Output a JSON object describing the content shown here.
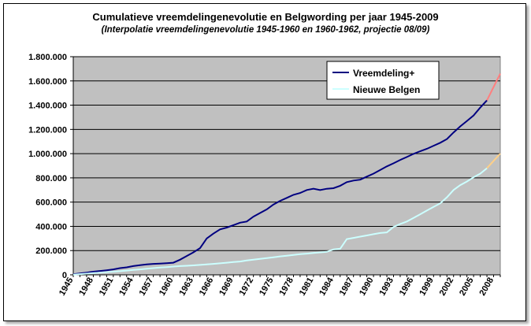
{
  "chart_data": {
    "type": "line",
    "title": "Cumulatieve vreemdelingenevolutie en Belgwording per jaar 1945-2009",
    "subtitle": "(Interpolatie vreemdelingenevolutie 1945-1960 en 1960-1962, projectie 08/09)",
    "xlabel": "",
    "ylabel": "",
    "xlim": [
      1945,
      2009
    ],
    "ylim": [
      0,
      1800000
    ],
    "grid": true,
    "legend_position": "top-right",
    "y_ticks": [
      0,
      200000,
      400000,
      600000,
      800000,
      1000000,
      1200000,
      1400000,
      1600000,
      1800000
    ],
    "y_tick_labels": [
      "0",
      "200.000",
      "400.000",
      "600.000",
      "800.000",
      "1.000.000",
      "1.200.000",
      "1.400.000",
      "1.600.000",
      "1.800.000"
    ],
    "x_tick_labels": [
      "1945",
      "1948",
      "1951",
      "1954",
      "1957",
      "1960",
      "1963",
      "1966",
      "1969",
      "1972",
      "1975",
      "1978",
      "1981",
      "1984",
      "1987",
      "1990",
      "1993",
      "1996",
      "1999",
      "2002",
      "2005",
      "2008"
    ],
    "series": [
      {
        "name": "Vreemdeling+",
        "color": "#000080",
        "projection_color": "#ff7f7f",
        "projection_from": 2007,
        "x": [
          1945,
          1946,
          1947,
          1948,
          1949,
          1950,
          1951,
          1952,
          1953,
          1954,
          1955,
          1956,
          1957,
          1958,
          1959,
          1960,
          1961,
          1962,
          1963,
          1964,
          1965,
          1966,
          1967,
          1968,
          1969,
          1970,
          1971,
          1972,
          1973,
          1974,
          1975,
          1976,
          1977,
          1978,
          1979,
          1980,
          1981,
          1982,
          1983,
          1984,
          1985,
          1986,
          1987,
          1988,
          1989,
          1990,
          1991,
          1992,
          1993,
          1994,
          1995,
          1996,
          1997,
          1998,
          1999,
          2000,
          2001,
          2002,
          2003,
          2004,
          2005,
          2006,
          2007,
          2008,
          2009
        ],
        "values": [
          5000,
          12000,
          18000,
          26000,
          32000,
          38000,
          45000,
          55000,
          62000,
          72000,
          80000,
          86000,
          90000,
          93000,
          96000,
          100000,
          125000,
          155000,
          185000,
          220000,
          300000,
          340000,
          375000,
          390000,
          410000,
          430000,
          440000,
          480000,
          510000,
          540000,
          580000,
          610000,
          635000,
          660000,
          675000,
          700000,
          710000,
          700000,
          710000,
          715000,
          735000,
          765000,
          778000,
          785000,
          810000,
          835000,
          865000,
          895000,
          920000,
          948000,
          972000,
          998000,
          1020000,
          1040000,
          1065000,
          1090000,
          1120000,
          1175000,
          1225000,
          1270000,
          1315000,
          1380000,
          1440000,
          1550000,
          1660000
        ]
      },
      {
        "name": "Nieuwe Belgen",
        "color": "#ccffff",
        "projection_color": "#ffd088",
        "projection_from": 2007,
        "x": [
          1945,
          1946,
          1947,
          1948,
          1949,
          1950,
          1951,
          1952,
          1953,
          1954,
          1955,
          1956,
          1957,
          1958,
          1959,
          1960,
          1961,
          1962,
          1963,
          1964,
          1965,
          1966,
          1967,
          1968,
          1969,
          1970,
          1971,
          1972,
          1973,
          1974,
          1975,
          1976,
          1977,
          1978,
          1979,
          1980,
          1981,
          1982,
          1983,
          1984,
          1985,
          1986,
          1987,
          1988,
          1989,
          1990,
          1991,
          1992,
          1993,
          1994,
          1995,
          1996,
          1997,
          1998,
          1999,
          2000,
          2001,
          2002,
          2003,
          2004,
          2005,
          2006,
          2007,
          2008,
          2009
        ],
        "values": [
          2000,
          6000,
          10000,
          14000,
          18000,
          22000,
          26000,
          30000,
          35000,
          40000,
          45000,
          50000,
          55000,
          60000,
          64000,
          68000,
          72000,
          75000,
          78000,
          82000,
          86000,
          90000,
          95000,
          100000,
          105000,
          110000,
          118000,
          125000,
          132000,
          138000,
          145000,
          152000,
          158000,
          164000,
          170000,
          175000,
          180000,
          185000,
          190000,
          210000,
          215000,
          295000,
          305000,
          315000,
          325000,
          335000,
          345000,
          350000,
          395000,
          420000,
          440000,
          470000,
          500000,
          530000,
          560000,
          590000,
          640000,
          700000,
          740000,
          770000,
          805000,
          835000,
          880000,
          940000,
          1000000
        ]
      }
    ]
  }
}
